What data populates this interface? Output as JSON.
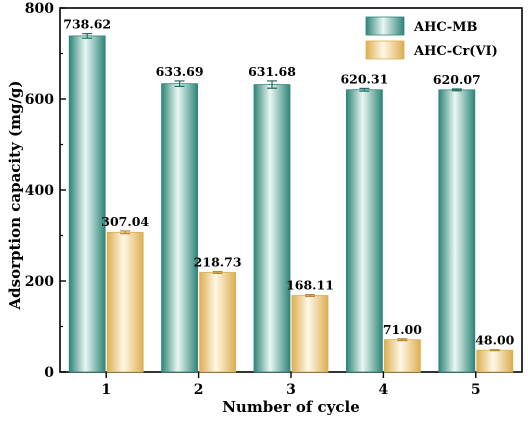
{
  "chart_data": {
    "type": "bar",
    "title": "",
    "xlabel": "Number of cycle",
    "ylabel": "Adsorption capacity (mg/g)",
    "categories": [
      "1",
      "2",
      "3",
      "4",
      "5"
    ],
    "ylim": [
      0,
      800
    ],
    "yticks": [
      "0",
      "200",
      "400",
      "600",
      "800"
    ],
    "legend_position": "top-right",
    "grid": false,
    "series": [
      {
        "name": "AHC-MB",
        "values": [
          738.62,
          633.69,
          631.68,
          620.31,
          620.07
        ],
        "labels": [
          "738.62",
          "633.69",
          "631.68",
          "620.31",
          "620.07"
        ],
        "errors": [
          5,
          6,
          8,
          3,
          2
        ],
        "color": "#3f9e8e"
      },
      {
        "name": "AHC-Cr(VI)",
        "values": [
          307.04,
          218.73,
          168.11,
          71.0,
          48.0
        ],
        "labels": [
          "307.04",
          "218.73",
          "168.11",
          "71.00",
          "48.00"
        ],
        "errors": [
          3,
          2,
          2,
          2,
          1
        ],
        "color": "#e9c67c"
      }
    ]
  }
}
